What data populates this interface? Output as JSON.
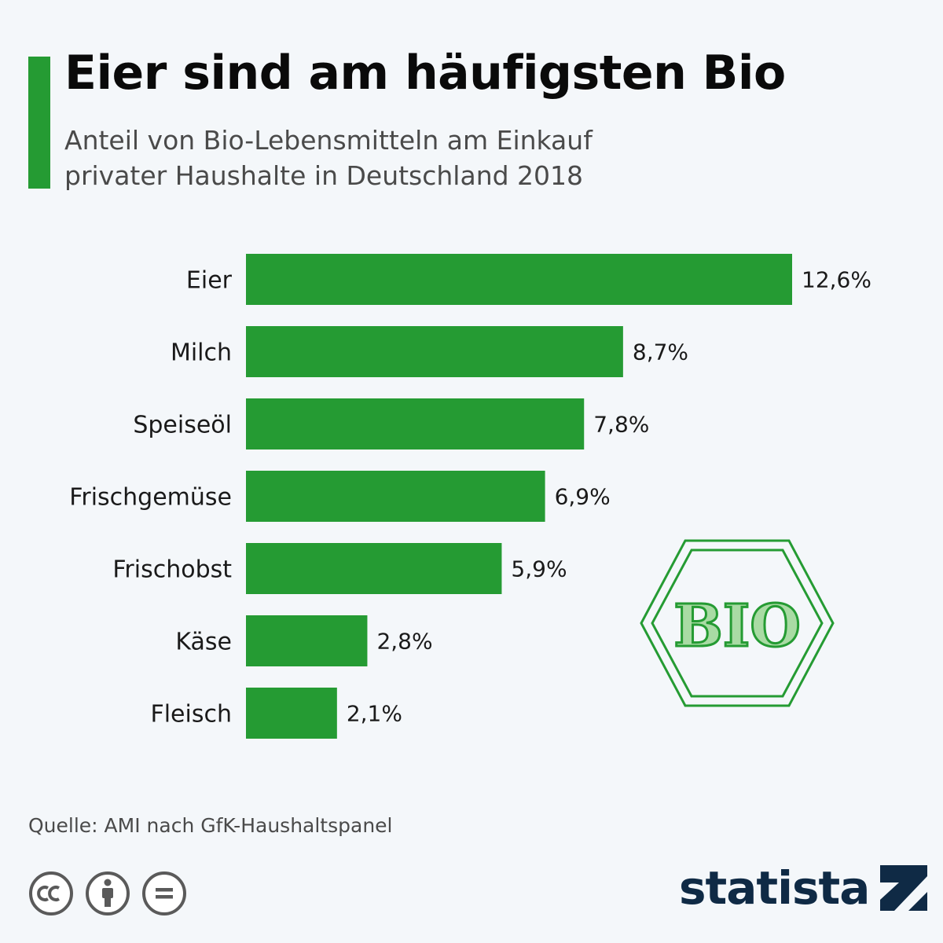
{
  "header": {
    "title": "Eier sind am häufigsten Bio",
    "subtitle_line1": "Anteil von Bio-Lebensmitteln am Einkauf",
    "subtitle_line2": "privater Haushalte in Deutschland 2018"
  },
  "colors": {
    "accent": "#259b33",
    "bar": "#259b33",
    "background": "#f4f7fa",
    "brand": "#0f2a45"
  },
  "chart_data": {
    "type": "bar",
    "orientation": "horizontal",
    "title": "Eier sind am häufigsten Bio",
    "subtitle": "Anteil von Bio-Lebensmitteln am Einkauf privater Haushalte in Deutschland 2018",
    "categories": [
      "Eier",
      "Milch",
      "Speiseöl",
      "Frischgemüse",
      "Frischobst",
      "Käse",
      "Fleisch"
    ],
    "values": [
      12.6,
      8.7,
      7.8,
      6.9,
      5.9,
      2.8,
      2.1
    ],
    "value_labels": [
      "12,6%",
      "8,7%",
      "7,8%",
      "6,9%",
      "5,9%",
      "2,8%",
      "2,1%"
    ],
    "unit": "%",
    "xlim": [
      0,
      12.6
    ],
    "grid": false,
    "legend": "none"
  },
  "logo": {
    "text": "BIO",
    "icon": "bio-seal-icon"
  },
  "footer": {
    "source": "Quelle: AMI nach GfK-Haushaltspanel",
    "license_icons": [
      "cc-icon",
      "attribution-icon",
      "no-derivatives-icon"
    ],
    "brand": "statista",
    "brand_icon": "statista-logo-icon"
  }
}
